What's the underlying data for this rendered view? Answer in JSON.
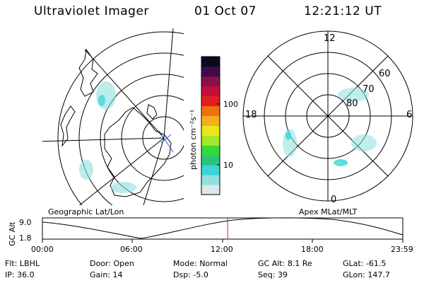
{
  "header": {
    "instrument": "Ultraviolet Imager",
    "date": "01 Oct 07",
    "time": "12:21:12 UT"
  },
  "geo_panel": {
    "title": "Geographic Lat/Lon"
  },
  "mag_panel": {
    "title": "Apex MLat/MLT",
    "mlt_labels": {
      "top": "12",
      "right": "6",
      "bottom": "0",
      "left": "18"
    },
    "lat_labels": [
      "60",
      "70",
      "80"
    ]
  },
  "colorbar": {
    "unit_label": "photon cm⁻²s⁻¹",
    "tick_labels": [
      "100",
      "10"
    ],
    "scale": "log",
    "colors": [
      "#d8eaea",
      "#8fe0e0",
      "#38d6d6",
      "#2cc47a",
      "#38d83a",
      "#a2e82a",
      "#e8e81a",
      "#f2b01a",
      "#f07010",
      "#e02020",
      "#c21036",
      "#8a0f4a",
      "#3e0c4a",
      "#0a0a1e"
    ]
  },
  "altitude_strip": {
    "axis_label": "GC Alt",
    "y_ticks": [
      "9.0",
      "1.8"
    ],
    "x_ticks": [
      "00:00",
      "06:00",
      "12:00",
      "18:00",
      "23:59"
    ],
    "current_time_fraction": 0.514,
    "marker_color": "#e82020"
  },
  "footer": {
    "rows": [
      [
        {
          "key": "Flt:",
          "value": "LBHL"
        },
        {
          "key": "Door:",
          "value": "Open"
        },
        {
          "key": "Mode:",
          "value": "Normal"
        },
        {
          "key": "GC Alt:",
          "value": "8.1 Re"
        },
        {
          "key": "GLat:",
          "value": "-61.5"
        }
      ],
      [
        {
          "key": "IP:",
          "value": "36.0"
        },
        {
          "key": "Gain:",
          "value": "14"
        },
        {
          "key": "Dsp:",
          "value": "-5.0"
        },
        {
          "key": "Seq:",
          "value": "39"
        },
        {
          "key": "GLon:",
          "value": "147.7"
        }
      ]
    ]
  }
}
